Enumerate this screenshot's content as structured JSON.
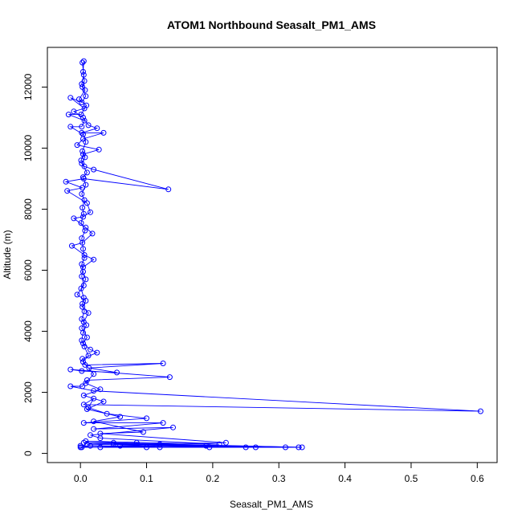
{
  "chart_data": {
    "type": "line",
    "markers": "open-circle",
    "title": "ATOM1 Northbound Seasalt_PM1_AMS",
    "xlabel": "Seasalt_PM1_AMS",
    "ylabel": "Altitude (m)",
    "xlim": [
      -0.05,
      0.63
    ],
    "ylim": [
      -300,
      13300
    ],
    "xticks": [
      0.0,
      0.1,
      0.2,
      0.3,
      0.4,
      0.5,
      0.6
    ],
    "xtick_labels": [
      "0.0",
      "0.1",
      "0.2",
      "0.3",
      "0.4",
      "0.5",
      "0.6"
    ],
    "yticks": [
      0,
      2000,
      4000,
      6000,
      8000,
      10000,
      12000
    ],
    "ytick_labels": [
      "0",
      "2000",
      "4000",
      "6000",
      "8000",
      "10000",
      "12000"
    ],
    "grid": false,
    "legend": "none",
    "color": "#0000ff",
    "series": [
      {
        "points": [
          [
            0.005,
            12850
          ],
          [
            0.004,
            12500
          ],
          [
            0.006,
            12200
          ],
          [
            0.003,
            12000
          ],
          [
            0.008,
            11700
          ],
          [
            0.002,
            11500
          ],
          [
            -0.015,
            11650
          ],
          [
            0.006,
            11300
          ],
          [
            -0.01,
            11200
          ],
          [
            0.004,
            11000
          ],
          [
            0.012,
            10750
          ],
          [
            0.025,
            10650
          ],
          [
            0.002,
            10500
          ],
          [
            0.035,
            10500
          ],
          [
            0.004,
            10300
          ],
          [
            -0.005,
            10100
          ],
          [
            0.028,
            9950
          ],
          [
            0.004,
            9800
          ],
          [
            0.001,
            9600
          ],
          [
            0.006,
            9400
          ],
          [
            0.02,
            9300
          ],
          [
            0.133,
            8650
          ],
          [
            0.005,
            9000
          ],
          [
            -0.022,
            8900
          ],
          [
            0.003,
            8700
          ],
          [
            -0.02,
            8600
          ],
          [
            0.01,
            8200
          ],
          [
            0.015,
            7900
          ],
          [
            0.004,
            7750
          ],
          [
            -0.01,
            7700
          ],
          [
            0.008,
            7400
          ],
          [
            0.018,
            7200
          ],
          [
            0.003,
            6900
          ],
          [
            -0.013,
            6800
          ],
          [
            0.006,
            6500
          ],
          [
            0.02,
            6350
          ],
          [
            0.004,
            6100
          ],
          [
            0.002,
            5800
          ],
          [
            0.005,
            5500
          ],
          [
            -0.005,
            5200
          ],
          [
            0.008,
            5000
          ],
          [
            0.003,
            4800
          ],
          [
            0.012,
            4600
          ],
          [
            0.005,
            4300
          ],
          [
            0.002,
            4100
          ],
          [
            0.01,
            3800
          ],
          [
            0.004,
            3600
          ],
          [
            0.015,
            3400
          ],
          [
            0.025,
            3300
          ],
          [
            0.003,
            3100
          ],
          [
            0.007,
            2900
          ],
          [
            0.125,
            2950
          ],
          [
            0.013,
            2800
          ],
          [
            0.055,
            2650
          ],
          [
            0.002,
            2700
          ],
          [
            -0.015,
            2750
          ],
          [
            0.135,
            2500
          ],
          [
            0.01,
            2400
          ],
          [
            0.003,
            2200
          ],
          [
            -0.015,
            2200
          ],
          [
            0.02,
            2050
          ],
          [
            0.605,
            1380
          ],
          [
            0.005,
            1600
          ],
          [
            0.02,
            1800
          ],
          [
            0.012,
            1500
          ],
          [
            0.04,
            1300
          ],
          [
            0.1,
            1150
          ],
          [
            0.005,
            1000
          ],
          [
            0.125,
            1000
          ],
          [
            0.02,
            800
          ],
          [
            0.14,
            850
          ],
          [
            0.015,
            600
          ],
          [
            0.03,
            500
          ],
          [
            0.21,
            300
          ],
          [
            0.008,
            400
          ],
          [
            0.05,
            350
          ],
          [
            0.33,
            200
          ],
          [
            0.015,
            250
          ],
          [
            0.0,
            200
          ],
          [
            0.195,
            200
          ],
          [
            0.25,
            200
          ],
          [
            0.31,
            200
          ],
          [
            0.01,
            300
          ],
          [
            0.085,
            350
          ],
          [
            0.12,
            200
          ],
          [
            0.002,
            200
          ]
        ]
      },
      {
        "points": [
          [
            0.003,
            12800
          ],
          [
            0.005,
            12400
          ],
          [
            0.002,
            12100
          ],
          [
            0.007,
            11900
          ],
          [
            -0.002,
            11600
          ],
          [
            0.009,
            11400
          ],
          [
            0.001,
            11100
          ],
          [
            -0.018,
            11100
          ],
          [
            0.006,
            10900
          ],
          [
            0.002,
            10700
          ],
          [
            -0.015,
            10700
          ],
          [
            0.004,
            10450
          ],
          [
            0.008,
            10200
          ],
          [
            0.003,
            9900
          ],
          [
            0.007,
            9700
          ],
          [
            0.002,
            9500
          ],
          [
            0.01,
            9200
          ],
          [
            0.004,
            9050
          ],
          [
            0.008,
            8800
          ],
          [
            0.002,
            8500
          ],
          [
            0.006,
            8300
          ],
          [
            0.003,
            8050
          ],
          [
            0.005,
            7850
          ],
          [
            0.001,
            7550
          ],
          [
            0.007,
            7300
          ],
          [
            0.002,
            7050
          ],
          [
            0.004,
            6700
          ],
          [
            0.006,
            6400
          ],
          [
            0.002,
            6200
          ],
          [
            0.004,
            5950
          ],
          [
            0.008,
            5700
          ],
          [
            0.001,
            5400
          ],
          [
            0.005,
            5100
          ],
          [
            0.003,
            4900
          ],
          [
            0.006,
            4650
          ],
          [
            0.002,
            4400
          ],
          [
            0.009,
            4200
          ],
          [
            0.004,
            3950
          ],
          [
            0.002,
            3700
          ],
          [
            0.006,
            3500
          ],
          [
            0.012,
            3200
          ],
          [
            0.004,
            3000
          ],
          [
            0.02,
            2600
          ],
          [
            0.008,
            2300
          ],
          [
            0.03,
            2100
          ],
          [
            0.005,
            1900
          ],
          [
            0.035,
            1700
          ],
          [
            0.01,
            1450
          ],
          [
            0.06,
            1200
          ],
          [
            0.02,
            1050
          ],
          [
            0.095,
            700
          ],
          [
            0.03,
            650
          ],
          [
            0.22,
            350
          ],
          [
            0.05,
            300
          ],
          [
            0.265,
            200
          ],
          [
            0.06,
            250
          ],
          [
            0.12,
            300
          ],
          [
            0.03,
            200
          ],
          [
            0.19,
            250
          ],
          [
            0.005,
            350
          ],
          [
            0.335,
            200
          ],
          [
            0.1,
            200
          ],
          [
            0.0,
            250
          ]
        ]
      }
    ]
  }
}
